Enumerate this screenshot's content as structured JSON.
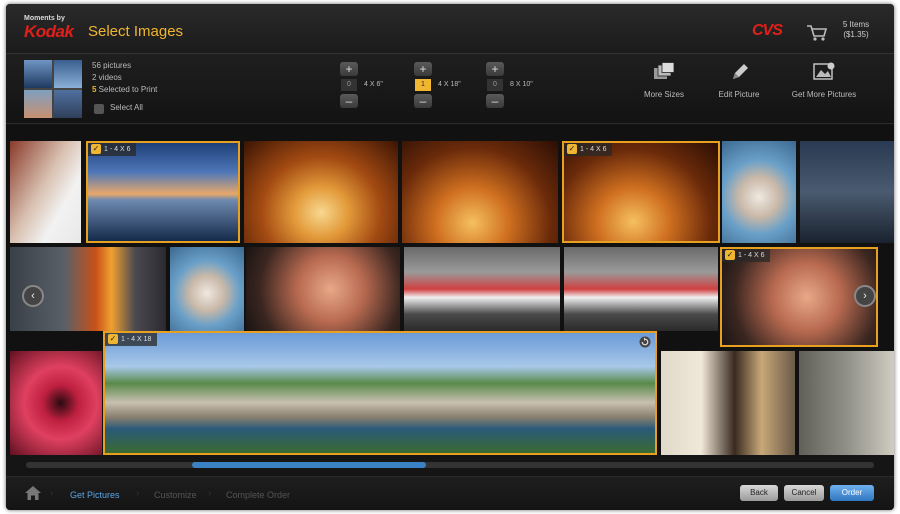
{
  "header": {
    "brand_top": "Moments by",
    "brand_main": "Kodak",
    "title": "Select Images",
    "store": "CVS",
    "cart_items": "5 Items",
    "cart_total": "($1.35)"
  },
  "summary": {
    "pictures": "56 pictures",
    "videos": "2 videos",
    "selected_count": "5",
    "selected_label": " Selected to Print",
    "select_all": "Select All"
  },
  "steppers": [
    {
      "label": "4 X 6\"",
      "value": "0",
      "active": false
    },
    {
      "label": "4 X 18\"",
      "value": "1",
      "active": true
    },
    {
      "label": "8 X 10\"",
      "value": "0",
      "active": false
    }
  ],
  "tools": [
    {
      "label": "More Sizes",
      "icon": "stacked-photos-icon"
    },
    {
      "label": "Edit Picture",
      "icon": "pencil-icon"
    },
    {
      "label": "Get More Pictures",
      "icon": "add-photo-icon"
    }
  ],
  "tiles": {
    "t_beach_badge": "1 - 4 X 6",
    "t_canyon2_badge": "1 - 4 X 6",
    "t_baby2_badge": "1 - 4 X 6",
    "t_pano_badge": "1 - 4 X 18"
  },
  "nav": {
    "prev": "‹",
    "next": "›"
  },
  "breadcrumb": {
    "step1": "Get Pictures",
    "step2": "Customize",
    "step3": "Complete Order"
  },
  "buttons": {
    "back": "Back",
    "cancel": "Cancel",
    "order": "Order"
  },
  "colors": {
    "accent": "#f0b630",
    "selection": "#e8a020",
    "brand_red": "#e0201a",
    "link_blue": "#5aa6e8"
  }
}
